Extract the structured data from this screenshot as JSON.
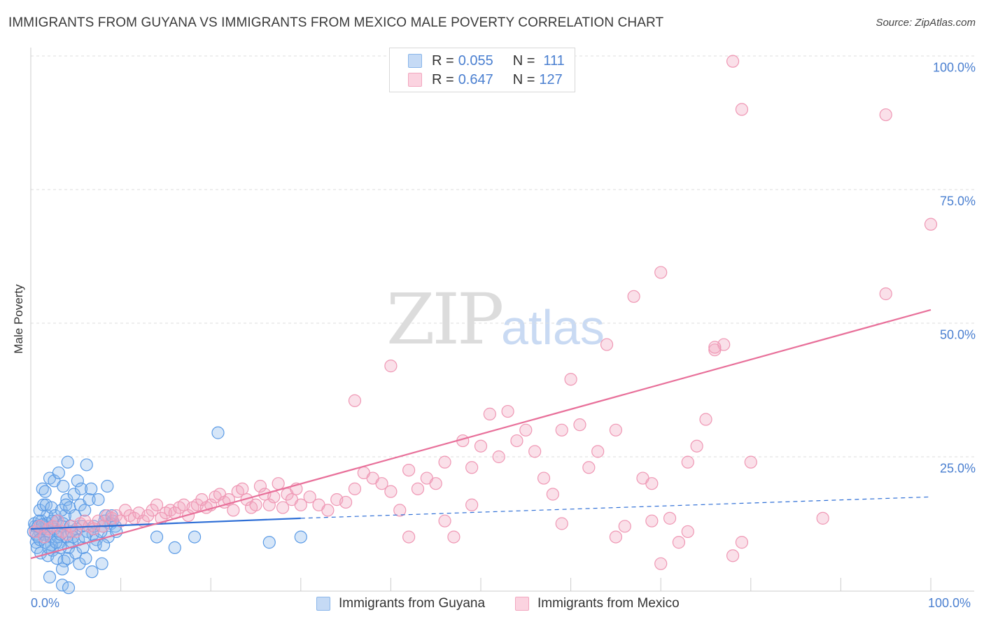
{
  "title": "IMMIGRANTS FROM GUYANA VS IMMIGRANTS FROM MEXICO MALE POVERTY CORRELATION CHART",
  "source": "Source: ZipAtlas.com",
  "watermark": {
    "part1": "ZIP",
    "part2": "atlas"
  },
  "legend": {
    "series1": {
      "r_label": "R = ",
      "r_value": "0.055",
      "n_label": "N = ",
      "n_value": "111",
      "color": "#8ab6ea"
    },
    "series2": {
      "r_label": "R = ",
      "r_value": "0.647",
      "n_label": "N = ",
      "n_value": "127",
      "color": "#f2a7bf"
    }
  },
  "chart_data": {
    "type": "scatter",
    "title": "IMMIGRANTS FROM GUYANA VS IMMIGRANTS FROM MEXICO MALE POVERTY CORRELATION CHART",
    "xlabel": "",
    "ylabel": "Male Poverty",
    "xlim": [
      0,
      100
    ],
    "ylim": [
      0,
      100
    ],
    "x_tick_labels": [
      "0.0%",
      "100.0%"
    ],
    "y_ticks": [
      25,
      50,
      75,
      100
    ],
    "y_tick_labels": [
      "25.0%",
      "50.0%",
      "75.0%",
      "100.0%"
    ],
    "grid": true,
    "series": [
      {
        "name": "Immigrants from Guyana",
        "color": "#4a90e2",
        "r": 0.055,
        "n": 111,
        "trend": {
          "x0": 0,
          "y0": 11.5,
          "x1": 30,
          "y1": 13.5,
          "dashed_to_x": 100,
          "dashed_to_y": 17.5,
          "color": "#2f6fd6"
        },
        "points": [
          [
            0.5,
            12
          ],
          [
            0.8,
            10
          ],
          [
            1,
            11
          ],
          [
            1.2,
            13
          ],
          [
            0.6,
            9
          ],
          [
            1.5,
            12
          ],
          [
            1.8,
            14
          ],
          [
            2,
            11
          ],
          [
            2.2,
            10
          ],
          [
            2.5,
            12
          ],
          [
            1,
            15
          ],
          [
            1.4,
            16
          ],
          [
            2.8,
            13
          ],
          [
            3,
            11
          ],
          [
            3.2,
            9
          ],
          [
            3.5,
            12
          ],
          [
            3.8,
            14
          ],
          [
            4,
            10
          ],
          [
            4.2,
            8
          ],
          [
            4.5,
            11
          ],
          [
            0.7,
            8
          ],
          [
            1.1,
            7
          ],
          [
            1.9,
            6.5
          ],
          [
            2.4,
            7.5
          ],
          [
            2.9,
            6
          ],
          [
            3.3,
            8
          ],
          [
            3.7,
            5.5
          ],
          [
            4.1,
            6
          ],
          [
            4.6,
            9
          ],
          [
            5,
            7
          ],
          [
            1.3,
            19
          ],
          [
            1.6,
            18.5
          ],
          [
            2.1,
            21
          ],
          [
            2.6,
            20.5
          ],
          [
            3.1,
            22
          ],
          [
            3.6,
            19.5
          ],
          [
            4,
            17
          ],
          [
            4.8,
            18
          ],
          [
            5.2,
            20.5
          ],
          [
            5.6,
            19
          ],
          [
            1.7,
            16
          ],
          [
            2.3,
            15.5
          ],
          [
            2.7,
            14
          ],
          [
            3.4,
            15
          ],
          [
            3.9,
            16
          ],
          [
            4.3,
            15.5
          ],
          [
            4.9,
            14
          ],
          [
            5.5,
            16
          ],
          [
            6,
            15
          ],
          [
            6.5,
            17
          ],
          [
            4.1,
            24
          ],
          [
            6.2,
            23.5
          ],
          [
            6.7,
            19
          ],
          [
            7.5,
            17
          ],
          [
            8.5,
            19.5
          ],
          [
            8.3,
            14
          ],
          [
            8.9,
            12.5
          ],
          [
            9.4,
            12
          ],
          [
            0.4,
            12.5
          ],
          [
            1.2,
            11.5
          ],
          [
            5.1,
            11.5
          ],
          [
            5.7,
            12
          ],
          [
            6.3,
            11
          ],
          [
            6.9,
            10.5
          ],
          [
            7.3,
            9.5
          ],
          [
            8,
            12
          ],
          [
            8.6,
            10
          ],
          [
            7.8,
            11
          ],
          [
            9.1,
            13
          ],
          [
            9.5,
            11
          ],
          [
            5.4,
            5
          ],
          [
            6.1,
            6
          ],
          [
            6.8,
            3.5
          ],
          [
            7.9,
            5
          ],
          [
            3.5,
            4
          ],
          [
            2.1,
            2.5
          ],
          [
            3.5,
            1
          ],
          [
            4.2,
            0.5
          ],
          [
            2.3,
            8.5
          ],
          [
            5.8,
            8
          ],
          [
            7.2,
            8.5
          ],
          [
            8.1,
            8.5
          ],
          [
            1.5,
            10.5
          ],
          [
            2.6,
            11.5
          ],
          [
            3.0,
            10
          ],
          [
            0.9,
            13
          ],
          [
            1.8,
            12.5
          ],
          [
            2.4,
            13
          ],
          [
            3.6,
            12.5
          ],
          [
            4.4,
            12
          ],
          [
            0.3,
            11
          ],
          [
            0.6,
            10.5
          ],
          [
            1.0,
            9.5
          ],
          [
            1.6,
            9
          ],
          [
            2.0,
            8
          ],
          [
            2.8,
            9
          ],
          [
            3.3,
            10.5
          ],
          [
            4.7,
            10
          ],
          [
            5.3,
            9.5
          ],
          [
            6.0,
            10
          ],
          [
            7.0,
            12
          ],
          [
            14,
            10
          ],
          [
            16,
            8
          ],
          [
            18.2,
            10
          ],
          [
            20.8,
            29.5
          ],
          [
            26.5,
            9
          ],
          [
            30,
            10
          ],
          [
            8.2,
            13
          ],
          [
            9.0,
            14
          ],
          [
            0.8,
            12
          ],
          [
            1.3,
            12.3
          ]
        ]
      },
      {
        "name": "Immigrants from Mexico",
        "color": "#f08fae",
        "r": 0.647,
        "n": 127,
        "trend": {
          "x0": 0,
          "y0": 6,
          "x1": 100,
          "y1": 52.5,
          "color": "#e8709a"
        },
        "points": [
          [
            0.5,
            11
          ],
          [
            1,
            12
          ],
          [
            1.5,
            10
          ],
          [
            2,
            11.5
          ],
          [
            2.5,
            12
          ],
          [
            3,
            13
          ],
          [
            3.5,
            11
          ],
          [
            4,
            10.5
          ],
          [
            4.5,
            12
          ],
          [
            5,
            11
          ],
          [
            5.5,
            12.5
          ],
          [
            6,
            13
          ],
          [
            6.5,
            12
          ],
          [
            7,
            11.5
          ],
          [
            7.5,
            13
          ],
          [
            8,
            12
          ],
          [
            8.5,
            14
          ],
          [
            9,
            13.5
          ],
          [
            9.5,
            14
          ],
          [
            10,
            13
          ],
          [
            10.5,
            15
          ],
          [
            11,
            14
          ],
          [
            11.5,
            13.5
          ],
          [
            12,
            14.5
          ],
          [
            12.5,
            13
          ],
          [
            13,
            14
          ],
          [
            13.5,
            15
          ],
          [
            14,
            16
          ],
          [
            14.5,
            13.5
          ],
          [
            15,
            14.5
          ],
          [
            15.5,
            15
          ],
          [
            16,
            14.5
          ],
          [
            16.5,
            15.5
          ],
          [
            17,
            16
          ],
          [
            17.5,
            14
          ],
          [
            18,
            15.5
          ],
          [
            18.5,
            16
          ],
          [
            19,
            17
          ],
          [
            19.5,
            15.5
          ],
          [
            20,
            16
          ],
          [
            20.5,
            17.5
          ],
          [
            21,
            18
          ],
          [
            21.5,
            16.5
          ],
          [
            22,
            17
          ],
          [
            22.5,
            15
          ],
          [
            23,
            18.5
          ],
          [
            23.5,
            19
          ],
          [
            24,
            17
          ],
          [
            24.5,
            15.5
          ],
          [
            25,
            16
          ],
          [
            25.5,
            19.5
          ],
          [
            26,
            18
          ],
          [
            26.5,
            16
          ],
          [
            27,
            17.5
          ],
          [
            27.5,
            20
          ],
          [
            28,
            15.5
          ],
          [
            28.5,
            18
          ],
          [
            29,
            17
          ],
          [
            29.5,
            19
          ],
          [
            30,
            16
          ],
          [
            31,
            17.5
          ],
          [
            32,
            16
          ],
          [
            33,
            15
          ],
          [
            34,
            17
          ],
          [
            35,
            16.5
          ],
          [
            36,
            19
          ],
          [
            37,
            22
          ],
          [
            38,
            21
          ],
          [
            39,
            20
          ],
          [
            40,
            18.5
          ],
          [
            41,
            15
          ],
          [
            42,
            22.5
          ],
          [
            43,
            19
          ],
          [
            44,
            21
          ],
          [
            45,
            20
          ],
          [
            46,
            24
          ],
          [
            47,
            10
          ],
          [
            48,
            28
          ],
          [
            49,
            23
          ],
          [
            50,
            27
          ],
          [
            51,
            33
          ],
          [
            52,
            25
          ],
          [
            53,
            33.5
          ],
          [
            54,
            28
          ],
          [
            55,
            30
          ],
          [
            56,
            26
          ],
          [
            57,
            21
          ],
          [
            58,
            18
          ],
          [
            59,
            12.5
          ],
          [
            60,
            39.5
          ],
          [
            61,
            31
          ],
          [
            62,
            23
          ],
          [
            63,
            26
          ],
          [
            64,
            46
          ],
          [
            65,
            10
          ],
          [
            66,
            12
          ],
          [
            67,
            55
          ],
          [
            68,
            21
          ],
          [
            69,
            20
          ],
          [
            70,
            5
          ],
          [
            71,
            13.5
          ],
          [
            72,
            9
          ],
          [
            73,
            11
          ],
          [
            74,
            27
          ],
          [
            75,
            32
          ],
          [
            76,
            45
          ],
          [
            77,
            46
          ],
          [
            78,
            6.5
          ],
          [
            79,
            9
          ],
          [
            80,
            24
          ],
          [
            36,
            35.5
          ],
          [
            40,
            42
          ],
          [
            42,
            10
          ],
          [
            46,
            13
          ],
          [
            49,
            16
          ],
          [
            59,
            30
          ],
          [
            65,
            30
          ],
          [
            69,
            13
          ],
          [
            73,
            24
          ],
          [
            70,
            59.5
          ],
          [
            76,
            45.5
          ],
          [
            78,
            99
          ],
          [
            79,
            90
          ],
          [
            95,
            89
          ],
          [
            100,
            68.5
          ],
          [
            88,
            13.5
          ],
          [
            95,
            55.5
          ]
        ]
      }
    ]
  },
  "bottom_legend": {
    "item1": "Immigrants from Guyana",
    "item2": "Immigrants from Mexico"
  }
}
